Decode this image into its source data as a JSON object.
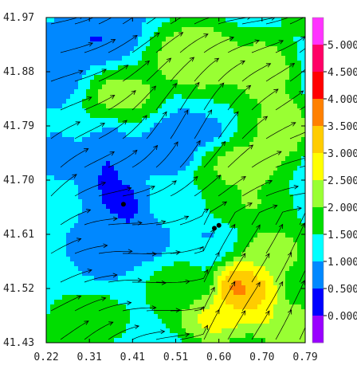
{
  "chart_data": {
    "type": "heatmap",
    "title": "",
    "xlabel": "",
    "ylabel": "",
    "xlim": [
      0.22,
      0.79
    ],
    "ylim": [
      41.43,
      41.97
    ],
    "x_ticks": [
      "0.22",
      "0.31",
      "0.41",
      "0.51",
      "0.60",
      "0.70",
      "0.79"
    ],
    "y_ticks": [
      "41.97",
      "41.88",
      "41.79",
      "41.70",
      "41.61",
      "41.52",
      "41.43"
    ],
    "overlay": "streamlines with arrowheads",
    "colorbar": {
      "labels": [
        "5.000",
        "4.500",
        "4.000",
        "3.500",
        "3.000",
        "2.500",
        "2.000",
        "1.500",
        "1.000",
        "0.500",
        "0.000"
      ],
      "colors": [
        "#ff33ff",
        "#ff0066",
        "#ff0000",
        "#ff8000",
        "#ffcc00",
        "#ffff00",
        "#99ff33",
        "#00dd00",
        "#00ffff",
        "#0088ff",
        "#0000ff",
        "#9900ff"
      ]
    },
    "markers": [
      {
        "x": 0.39,
        "y": 41.66
      },
      {
        "x": 0.59,
        "y": 41.62
      },
      {
        "x": 0.6,
        "y": 41.625
      }
    ],
    "field_blobs": [
      {
        "x": 0.25,
        "y": 41.89,
        "v": 0.4,
        "sx": 0.05,
        "sy": 0.05
      },
      {
        "x": 0.32,
        "y": 41.93,
        "v": 0.3,
        "sx": 0.07,
        "sy": 0.03
      },
      {
        "x": 0.36,
        "y": 41.69,
        "v": 0.2,
        "sx": 0.04,
        "sy": 0.07
      },
      {
        "x": 0.41,
        "y": 41.66,
        "v": 0.2,
        "sx": 0.03,
        "sy": 0.05
      },
      {
        "x": 0.48,
        "y": 41.74,
        "v": 0.4,
        "sx": 0.06,
        "sy": 0.025
      },
      {
        "x": 0.55,
        "y": 41.78,
        "v": 0.5,
        "sx": 0.05,
        "sy": 0.02
      },
      {
        "x": 0.43,
        "y": 41.6,
        "v": 0.6,
        "sx": 0.05,
        "sy": 0.03
      },
      {
        "x": 0.28,
        "y": 41.6,
        "v": 0.9,
        "sx": 0.05,
        "sy": 0.04
      },
      {
        "x": 0.4,
        "y": 41.84,
        "v": 2.4,
        "sx": 0.06,
        "sy": 0.03
      },
      {
        "x": 0.55,
        "y": 41.9,
        "v": 2.6,
        "sx": 0.08,
        "sy": 0.04
      },
      {
        "x": 0.7,
        "y": 41.88,
        "v": 2.8,
        "sx": 0.05,
        "sy": 0.04
      },
      {
        "x": 0.74,
        "y": 41.79,
        "v": 2.8,
        "sx": 0.04,
        "sy": 0.04
      },
      {
        "x": 0.65,
        "y": 41.72,
        "v": 2.3,
        "sx": 0.08,
        "sy": 0.03
      },
      {
        "x": 0.66,
        "y": 41.66,
        "v": 2.2,
        "sx": 0.07,
        "sy": 0.03
      },
      {
        "x": 0.71,
        "y": 41.58,
        "v": 2.4,
        "sx": 0.05,
        "sy": 0.03
      },
      {
        "x": 0.64,
        "y": 41.52,
        "v": 4.2,
        "sx": 0.035,
        "sy": 0.03
      },
      {
        "x": 0.68,
        "y": 41.51,
        "v": 3.6,
        "sx": 0.04,
        "sy": 0.04
      },
      {
        "x": 0.6,
        "y": 41.47,
        "v": 3.0,
        "sx": 0.06,
        "sy": 0.03
      },
      {
        "x": 0.74,
        "y": 41.46,
        "v": 2.8,
        "sx": 0.05,
        "sy": 0.03
      },
      {
        "x": 0.33,
        "y": 41.47,
        "v": 2.0,
        "sx": 0.05,
        "sy": 0.03
      },
      {
        "x": 0.5,
        "y": 41.52,
        "v": 1.6,
        "sx": 0.06,
        "sy": 0.03
      }
    ]
  }
}
